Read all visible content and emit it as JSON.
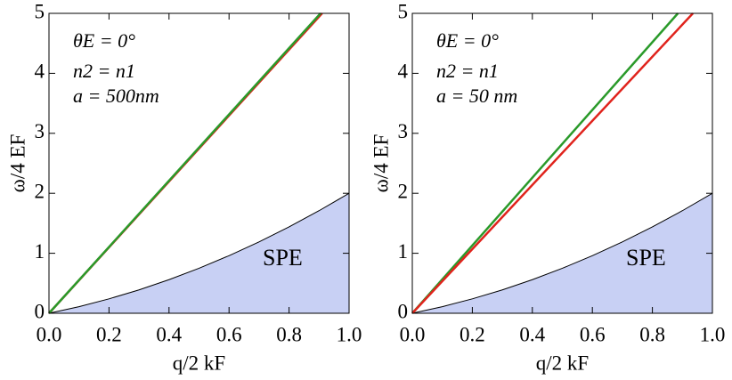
{
  "chart_data": [
    {
      "type": "line",
      "xlabel": "q/2 kF",
      "ylabel": "ω/4 EF",
      "xlim": [
        0,
        1
      ],
      "ylim": [
        0,
        5
      ],
      "xticks": [
        {
          "value": 0,
          "label": "0.0"
        },
        0.2,
        0.4,
        0.6,
        0.8,
        {
          "value": 1,
          "label": "1.0"
        }
      ],
      "yticks": [
        0,
        1,
        2,
        3,
        4,
        5
      ],
      "annotations": [
        "θE = 0°",
        "n2 = n1",
        "a = 500nm",
        "SPE"
      ],
      "series": [
        {
          "color": "#000000",
          "fill": "#c8d0f4",
          "x": [
            0,
            0.1,
            0.2,
            0.3,
            0.4,
            0.5,
            0.6,
            0.7,
            0.8,
            0.9,
            1.0
          ],
          "values": [
            0,
            0.11,
            0.24,
            0.39,
            0.56,
            0.75,
            0.96,
            1.19,
            1.44,
            1.71,
            2.0
          ]
        },
        {
          "color": "#e0231c",
          "x": [
            0,
            0.91
          ],
          "values": [
            0,
            5
          ]
        },
        {
          "color": "#2a9a2a",
          "x": [
            0,
            0.905
          ],
          "values": [
            0,
            5
          ]
        }
      ]
    },
    {
      "type": "line",
      "xlabel": "q/2 kF",
      "ylabel": "ω/4 EF",
      "xlim": [
        0,
        1
      ],
      "ylim": [
        0,
        5
      ],
      "xticks": [
        {
          "value": 0,
          "label": "0.0"
        },
        0.2,
        0.4,
        0.6,
        0.8,
        {
          "value": 1,
          "label": "1.0"
        }
      ],
      "yticks": [
        0,
        1,
        2,
        3,
        4,
        5
      ],
      "annotations": [
        "θE = 0°",
        "n2 = n1",
        "a = 50 nm",
        "SPE"
      ],
      "series": [
        {
          "color": "#000000",
          "fill": "#c8d0f4",
          "x": [
            0,
            0.1,
            0.2,
            0.3,
            0.4,
            0.5,
            0.6,
            0.7,
            0.8,
            0.9,
            1.0
          ],
          "values": [
            0,
            0.11,
            0.24,
            0.39,
            0.56,
            0.75,
            0.96,
            1.19,
            1.44,
            1.71,
            2.0
          ]
        },
        {
          "color": "#2a9a2a",
          "x": [
            0,
            0.885
          ],
          "values": [
            0,
            5
          ]
        },
        {
          "color": "#e0231c",
          "x": [
            0,
            0.935
          ],
          "values": [
            0,
            5
          ]
        }
      ]
    }
  ]
}
